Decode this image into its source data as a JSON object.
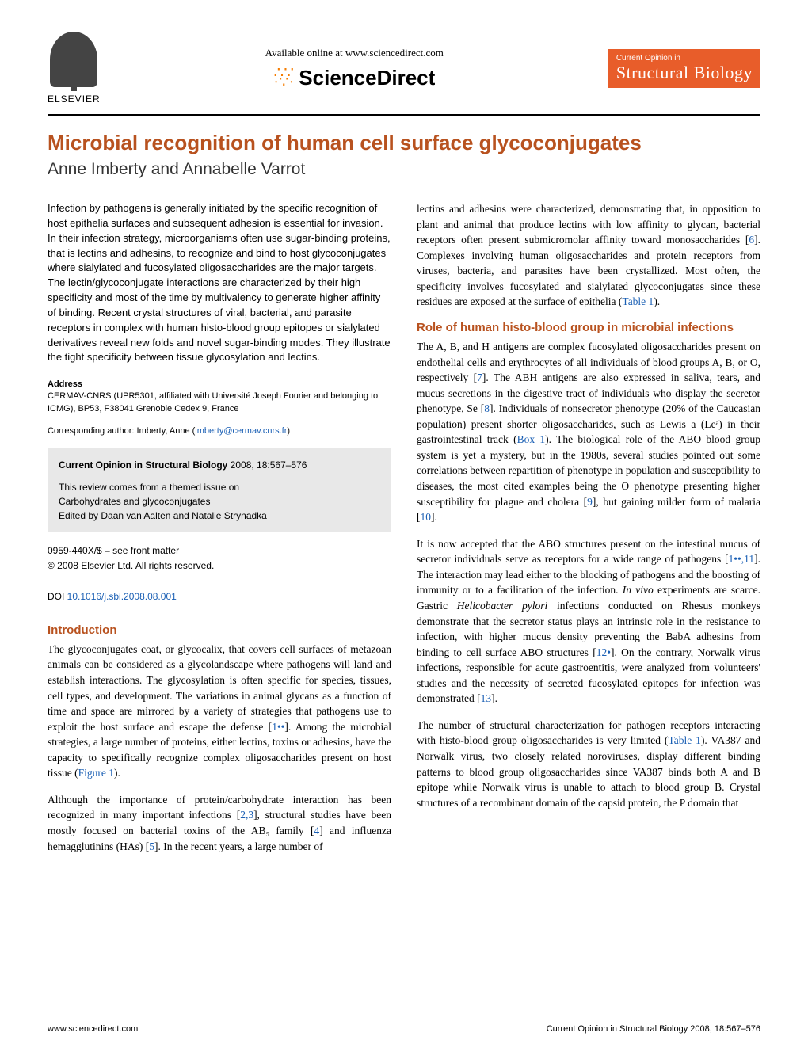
{
  "header": {
    "publisher_name": "ELSEVIER",
    "available_text": "Available online at www.sciencedirect.com",
    "sciencedirect_label": "ScienceDirect",
    "journal_prefix": "Current Opinion in",
    "journal_name": "Structural Biology"
  },
  "title": "Microbial recognition of human cell surface glycoconjugates",
  "authors": "Anne Imberty and Annabelle Varrot",
  "abstract": "Infection by pathogens is generally initiated by the specific recognition of host epithelia surfaces and subsequent adhesion is essential for invasion. In their infection strategy, microorganisms often use sugar-binding proteins, that is lectins and adhesins, to recognize and bind to host glycoconjugates where sialylated and fucosylated oligosaccharides are the major targets. The lectin/glycoconjugate interactions are characterized by their high specificity and most of the time by multivalency to generate higher affinity of binding. Recent crystal structures of viral, bacterial, and parasite receptors in complex with human histo-blood group epitopes or sialylated derivatives reveal new folds and novel sugar-binding modes. They illustrate the tight specificity between tissue glycosylation and lectins.",
  "address_header": "Address",
  "address": "CERMAV-CNRS (UPR5301, affiliated with Université Joseph Fourier and belonging to ICMG), BP53, F38041 Grenoble Cedex 9, France",
  "corresponding_prefix": "Corresponding author: Imberty, Anne (",
  "corresponding_email": "imberty@cermav.cnrs.fr",
  "corresponding_suffix": ")",
  "infobox": {
    "citation_journal": "Current Opinion in Structural Biology",
    "citation_year_pages": " 2008, 18:567–576",
    "theme_line1": "This review comes from a themed issue on",
    "theme_line2": "Carbohydrates and glycoconjugates",
    "theme_line3": "Edited by Daan van Aalten and Natalie Strynadka"
  },
  "front_matter": {
    "issn": "0959-440X/$ – see front matter",
    "copyright": "© 2008 Elsevier Ltd. All rights reserved.",
    "doi_label": "DOI ",
    "doi": "10.1016/j.sbi.2008.08.001"
  },
  "left_sections": {
    "intro_header": "Introduction",
    "intro_p1_a": "The glycoconjugates coat, or glycocalix, that covers cell surfaces of metazoan animals can be considered as a glycolandscape where pathogens will land and establish interactions. The glycosylation is often specific for species, tissues, cell types, and development. The variations in animal glycans as a function of time and space are mirrored by a variety of strategies that pathogens use to exploit the host surface and escape the defense [",
    "intro_ref1": "1••",
    "intro_p1_b": "]. Among the microbial strategies, a large number of proteins, either lectins, toxins or adhesins, have the capacity to specifically recognize complex oligosaccharides present on host tissue (",
    "intro_fig1": "Figure 1",
    "intro_p1_c": ").",
    "intro_p2_a": "Although the importance of protein/carbohydrate interaction has been recognized in many important infections [",
    "intro_ref23": "2,3",
    "intro_p2_b": "], structural studies have been mostly focused on bacterial toxins of the AB₅ family [",
    "intro_ref4": "4",
    "intro_p2_c": "] and influenza hemagglutinins (HAs) [",
    "intro_ref5": "5",
    "intro_p2_d": "]. In the recent years, a large number of"
  },
  "right_sections": {
    "p1_a": "lectins and adhesins were characterized, demonstrating that, in opposition to plant and animal that produce lectins with low affinity to glycan, bacterial receptors often present submicromolar affinity toward monosaccharides [",
    "p1_ref6": "6",
    "p1_b": "]. Complexes involving human oligosaccharides and protein receptors from viruses, bacteria, and parasites have been crystallized. Most often, the specificity involves fucosylated and sialylated glycoconjugates since these residues are exposed at the surface of epithelia (",
    "p1_tab1": "Table 1",
    "p1_c": ").",
    "role_header": "Role of human histo-blood group in microbial infections",
    "role_p1_a": "The A, B, and H antigens are complex fucosylated oligosaccharides present on endothelial cells and erythrocytes of all individuals of blood groups A, B, or O, respectively [",
    "role_ref7": "7",
    "role_p1_b": "]. The ABH antigens are also expressed in saliva, tears, and mucus secretions in the digestive tract of individuals who display the secretor phenotype, Se [",
    "role_ref8": "8",
    "role_p1_c": "]. Individuals of nonsecretor phenotype (20% of the Caucasian population) present shorter oligosaccharides, such as Lewis a (Leᵃ) in their gastrointestinal track (",
    "role_box1": "Box 1",
    "role_p1_d": "). The biological role of the ABO blood group system is yet a mystery, but in the 1980s, several studies pointed out some correlations between repartition of phenotype in population and susceptibility to diseases, the most cited examples being the O phenotype presenting higher susceptibility for plague and cholera [",
    "role_ref9": "9",
    "role_p1_e": "], but gaining milder form of malaria [",
    "role_ref10": "10",
    "role_p1_f": "].",
    "role_p2_a": "It is now accepted that the ABO structures present on the intestinal mucus of secretor individuals serve as receptors for a wide range of pathogens [",
    "role_ref1_11": "1••,11",
    "role_p2_b": "]. The interaction may lead either to the blocking of pathogens and the boosting of immunity or to a facilitation of the infection. ",
    "role_p2_italic": "In vivo",
    "role_p2_c": " experiments are scarce. Gastric ",
    "role_p2_italic2": "Helicobacter pylori",
    "role_p2_d": " infections conducted on Rhesus monkeys demonstrate that the secretor status plays an intrinsic role in the resistance to infection, with higher mucus density preventing the BabA adhesins from binding to cell surface ABO structures [",
    "role_ref12": "12•",
    "role_p2_e": "]. On the contrary, Norwalk virus infections, responsible for acute gastroentitis, were analyzed from volunteers' studies and the necessity of secreted fucosylated epitopes for infection was demonstrated [",
    "role_ref13": "13",
    "role_p2_f": "].",
    "role_p3_a": "The number of structural characterization for pathogen receptors interacting with histo-blood group oligosaccharides is very limited (",
    "role_tab1": "Table 1",
    "role_p3_b": "). VA387 and Norwalk virus, two closely related noroviruses, display different binding patterns to blood group oligosaccharides since VA387 binds both A and B epitope while Norwalk virus is unable to attach to blood group B. Crystal structures of a recombinant domain of the capsid protein, the P domain that"
  },
  "footer": {
    "left": "www.sciencedirect.com",
    "right": "Current Opinion in Structural Biology 2008, 18:567–576"
  },
  "colors": {
    "accent_orange": "#b8521f",
    "journal_orange": "#e85d2a",
    "link_blue": "#1a5fb4",
    "infobox_bg": "#e8e8e8"
  }
}
